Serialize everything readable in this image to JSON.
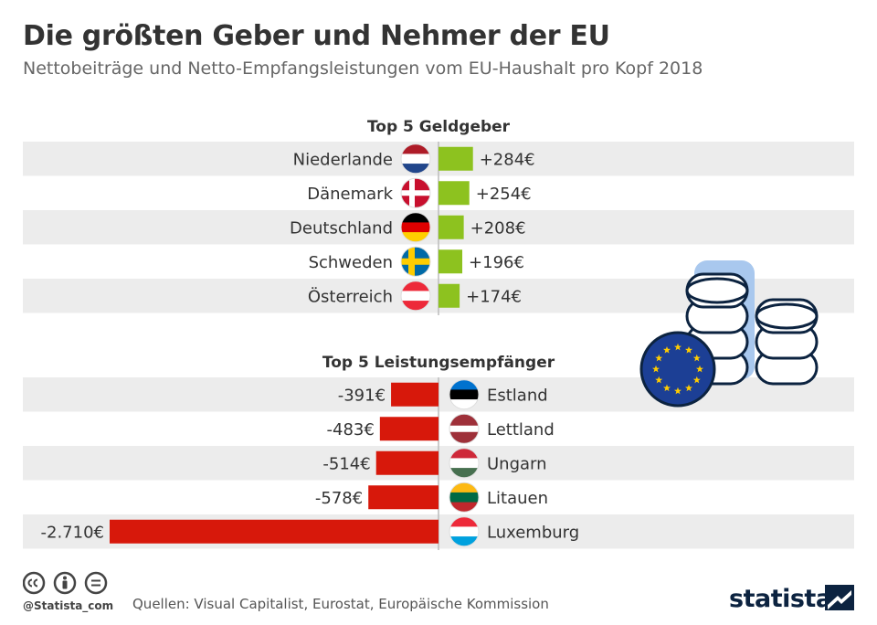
{
  "title": "Die größten Geber und Nehmer der EU",
  "subtitle": "Nettobeiträge und Netto-Empfangsleistungen vom EU-Haushalt pro Kopf 2018",
  "chart_data": [
    {
      "type": "bar",
      "title": "Top 5 Geldgeber",
      "categories": [
        "Niederlande",
        "Dänemark",
        "Deutschland",
        "Schweden",
        "Österreich"
      ],
      "values": [
        284,
        254,
        208,
        196,
        174
      ],
      "labels": [
        "+284€",
        "+254€",
        "+208€",
        "+196€",
        "+174€"
      ],
      "flags": [
        "flag-netherlands",
        "flag-denmark",
        "flag-germany",
        "flag-sweden",
        "flag-austria"
      ],
      "color": "#8dc21f"
    },
    {
      "type": "bar",
      "title": "Top 5 Leistungsempfänger",
      "categories": [
        "Estland",
        "Lettland",
        "Ungarn",
        "Litauen",
        "Luxemburg"
      ],
      "values": [
        -391,
        -483,
        -514,
        -578,
        -2710
      ],
      "labels": [
        "-391€",
        "-483€",
        "-514€",
        "-578€",
        "-2.710€"
      ],
      "flags": [
        "flag-estonia",
        "flag-latvia",
        "flag-hungary",
        "flag-lithuania",
        "flag-luxembourg"
      ],
      "color": "#d7180b"
    }
  ],
  "footer": {
    "handle": "@Statista_com",
    "sources": "Quellen: Visual Capitalist, Eurostat, Europäische Kommission",
    "brand": "statista"
  },
  "icons": [
    "cc-icon",
    "by-icon",
    "nd-icon",
    "coin-stack-icon",
    "eu-flag-icon"
  ]
}
